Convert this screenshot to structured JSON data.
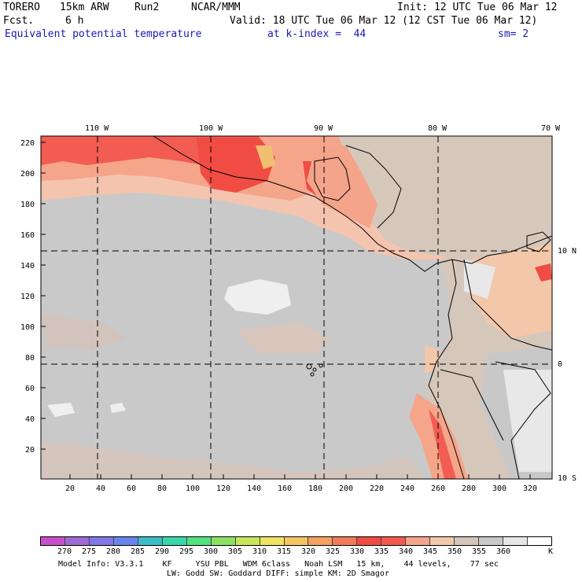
{
  "header": {
    "model": "TORERO",
    "resolution": "15km ARW",
    "run": "Run2",
    "org": "NCAR/MMM",
    "init": "Init: 12 UTC Tue 06 Mar 12",
    "fcst_label": "Fcst.",
    "fcst_value": "6 h",
    "valid": "Valid: 18 UTC Tue 06 Mar 12 (12 CST Tue 06 Mar 12)",
    "field": "Equivalent potential temperature",
    "level": "at k-index =  44",
    "smoothing": "sm= 2"
  },
  "map": {
    "top_lon_labels": [
      "110 W",
      "100 W",
      "90 W",
      "80 W",
      "70 W"
    ],
    "right_lat_labels": [
      "10 N",
      "0",
      "10 S"
    ],
    "y_ticks": [
      "220",
      "200",
      "180",
      "160",
      "140",
      "120",
      "100",
      "80",
      "60",
      "40",
      "20"
    ],
    "x_ticks": [
      "20",
      "40",
      "60",
      "80",
      "100",
      "120",
      "140",
      "160",
      "180",
      "200",
      "220",
      "240",
      "260",
      "280",
      "300",
      "320"
    ]
  },
  "legend": {
    "values": [
      "270",
      "275",
      "280",
      "285",
      "290",
      "295",
      "300",
      "305",
      "310",
      "315",
      "320",
      "325",
      "330",
      "335",
      "340",
      "345",
      "350",
      "355",
      "360"
    ],
    "unit": "K",
    "colors": [
      "#c84fcb",
      "#9e6bd6",
      "#7f78e6",
      "#6a86ee",
      "#3cbcc7",
      "#38d6a8",
      "#55e07e",
      "#8ce062",
      "#c6e65c",
      "#f0e262",
      "#f5c462",
      "#f5a062",
      "#f07b5a",
      "#f04c44",
      "#f2594f",
      "#f4a48a",
      "#f3c7aa",
      "#d5c6ba",
      "#c8c8c8",
      "#e6e6e6",
      "#ffffff"
    ]
  },
  "footer": {
    "line1": "Model Info: V3.3.1    KF     YSU PBL   WDM 6class   Noah LSM   15 km,    44 levels,    77 sec",
    "line2": "LW: Godd SW: Goddard DIFF: simple KM: 2D Smagor"
  }
}
